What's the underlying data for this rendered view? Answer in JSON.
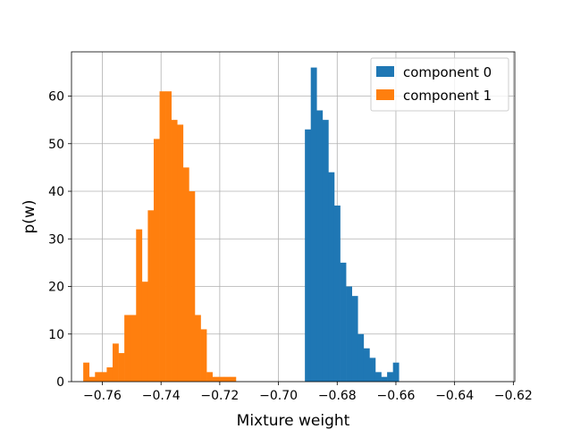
{
  "chart_data": {
    "type": "histogram",
    "xlabel": "Mixture weight",
    "ylabel": "p(w)",
    "xlim": [
      -0.7705,
      -0.6195
    ],
    "ylim": [
      0,
      69.3
    ],
    "xticks": [
      -0.76,
      -0.74,
      -0.72,
      -0.7,
      -0.68,
      -0.66,
      -0.64,
      -0.62
    ],
    "xtick_labels": [
      "−0.76",
      "−0.74",
      "−0.72",
      "−0.70",
      "−0.68",
      "−0.66",
      "−0.64",
      "−0.62"
    ],
    "yticks": [
      0,
      10,
      20,
      30,
      40,
      50,
      60
    ],
    "ytick_labels": [
      "0",
      "10",
      "20",
      "30",
      "40",
      "50",
      "60"
    ],
    "grid": true,
    "legend_position": "top-right",
    "series": [
      {
        "name": "component 0",
        "color": "#1f77b4",
        "bin_start": -0.691,
        "bin_width": 0.002,
        "values": [
          53,
          66,
          57,
          55,
          44,
          37,
          25,
          20,
          18,
          10,
          7,
          5,
          2,
          1,
          2,
          4
        ]
      },
      {
        "name": "component 1",
        "color": "#ff7f0e",
        "bin_start": -0.7665,
        "bin_width": 0.002,
        "values": [
          4,
          1,
          2,
          2,
          3,
          8,
          6,
          14,
          14,
          32,
          21,
          36,
          51,
          61,
          61,
          55,
          54,
          45,
          40,
          14,
          11,
          2,
          1,
          1,
          1,
          1
        ]
      }
    ]
  }
}
